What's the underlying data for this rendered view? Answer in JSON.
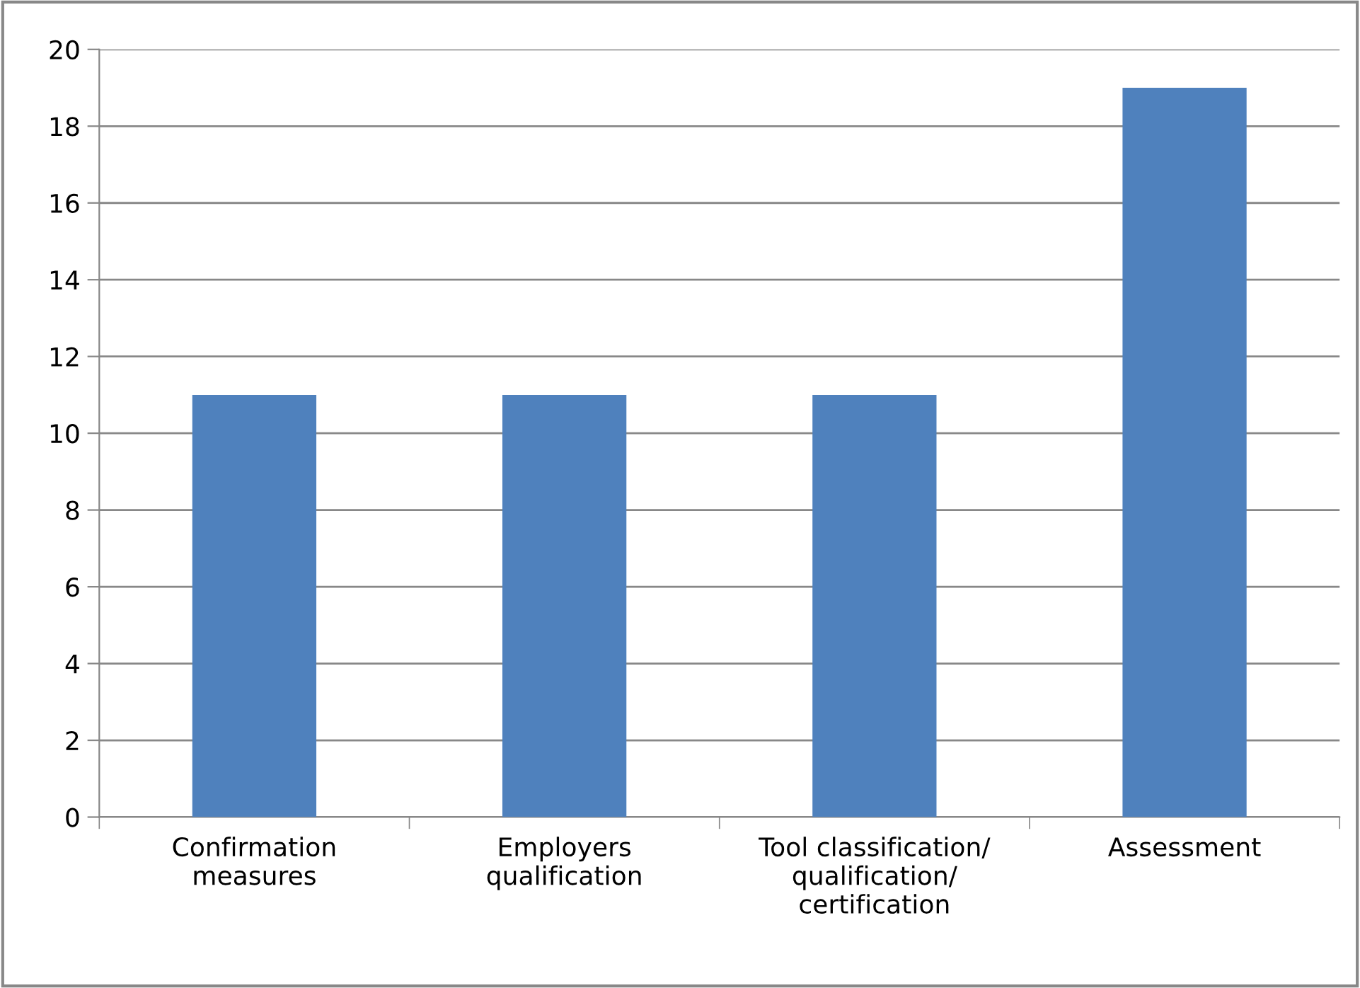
{
  "chart_data": {
    "type": "bar",
    "categories": [
      "Confirmation\nmeasures",
      "Employers\nqualification",
      "Tool classification/\nqualification/\ncertification",
      "Assessment"
    ],
    "values": [
      11,
      11,
      11,
      19
    ],
    "color": "#4f81bd",
    "ylim": [
      0,
      20
    ],
    "yticks": [
      0,
      2,
      4,
      6,
      8,
      10,
      12,
      14,
      16,
      18,
      20
    ],
    "grid": "y",
    "legend": false
  }
}
